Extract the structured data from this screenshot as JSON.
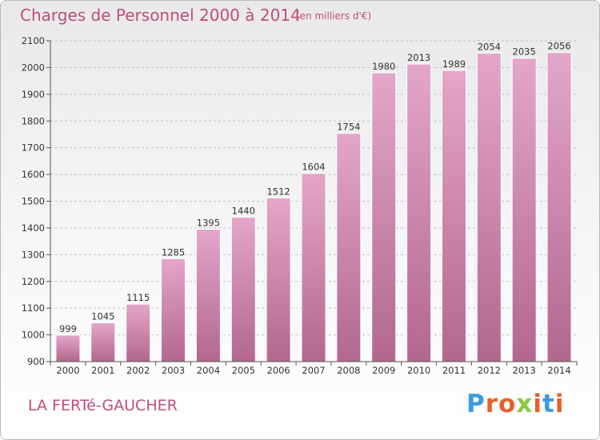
{
  "header": {
    "title": "Charges de Personnel 2000 à 2014",
    "subtitle": "(en milliers d'€)"
  },
  "footer": {
    "commune": "LA FERTé-GAUCHER",
    "brand_letters": [
      "P",
      "r",
      "o",
      "x",
      "i",
      "t",
      "i"
    ],
    "brand_colors": [
      "#3d9be0",
      "#e5612a",
      "#e5612a",
      "#8cc63e",
      "#e5612a",
      "#3d9be0",
      "#e5612a"
    ]
  },
  "colors": {
    "accent": "#c04d7e",
    "bar_top": "#e4a6cb",
    "bar_bottom": "#b2678f",
    "grid": "#bfbfbf"
  },
  "chart_data": {
    "type": "bar",
    "title": "Charges de Personnel 2000 à 2014",
    "subtitle": "(en milliers d'€)",
    "categories": [
      "2000",
      "2001",
      "2002",
      "2003",
      "2004",
      "2005",
      "2006",
      "2007",
      "2008",
      "2009",
      "2010",
      "2011",
      "2012",
      "2013",
      "2014"
    ],
    "values": [
      999,
      1045,
      1115,
      1285,
      1395,
      1440,
      1512,
      1604,
      1754,
      1980,
      2013,
      1989,
      2054,
      2035,
      2056
    ],
    "ylim": [
      900,
      2100
    ],
    "yticks": [
      900,
      1000,
      1100,
      1200,
      1300,
      1400,
      1500,
      1600,
      1700,
      1800,
      1900,
      2000,
      2100
    ],
    "grid": true,
    "xlabel": "",
    "ylabel": ""
  }
}
